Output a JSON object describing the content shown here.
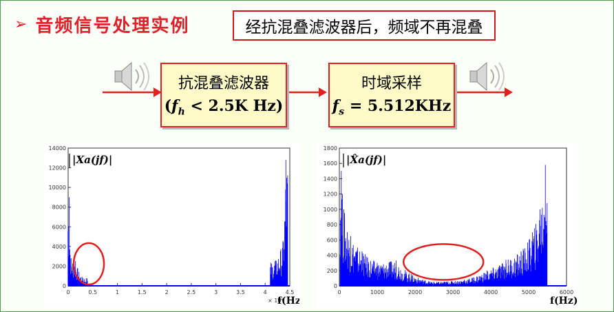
{
  "title": {
    "bullet": "➢",
    "text": "音频信号处理实例"
  },
  "note": "经抗混叠滤波器后，频域不再混叠",
  "flow": {
    "box1": {
      "line1": "抗混叠滤波器",
      "line2_prefix": "(",
      "line2_var": "f",
      "line2_sub": "h",
      "line2_suffix": " < 2.5K Hz)"
    },
    "box2": {
      "line1": "时域采样",
      "line2_var": "f",
      "line2_sub": "s",
      "line2_suffix": " = 5.512KHz"
    },
    "icons": [
      "speaker-icon",
      "speaker-icon"
    ],
    "colors": {
      "arrow": "#e02020",
      "box_fill": "#fffbc8",
      "box_border": "#e02020"
    }
  },
  "chart_data": [
    {
      "type": "line",
      "formula": "|Xa(jf)|",
      "xlabel": "f(Hz)",
      "x_multiplier": "× 10⁴",
      "xticks": [
        "0",
        "0.5",
        "1",
        "1.5",
        "2",
        "2.5",
        "3",
        "3.5",
        "4",
        "4.5"
      ],
      "yticks": [
        "0",
        "2000",
        "4000",
        "6000",
        "8000",
        "10000",
        "12000",
        "14000"
      ],
      "xlim": [
        0,
        4.5
      ],
      "ylim": [
        0,
        14000
      ],
      "series_color": "#0000ff",
      "annotation": {
        "type": "ellipse",
        "color": "#e02020",
        "x_center": 0.42,
        "y_center": 700
      },
      "peaks": [
        {
          "x": 0.02,
          "y": 9000
        },
        {
          "x": 0.06,
          "y": 2800
        },
        {
          "x": 0.15,
          "y": 2500
        },
        {
          "x": 0.3,
          "y": 800
        },
        {
          "x": 4.2,
          "y": 2500
        },
        {
          "x": 4.36,
          "y": 4500
        },
        {
          "x": 4.42,
          "y": 12800
        }
      ]
    },
    {
      "type": "line",
      "formula": "|X̂a(jf)|",
      "xlabel": "f(Hz)",
      "xticks": [
        "0",
        "1000",
        "2000",
        "3000",
        "4000",
        "5000",
        "6000"
      ],
      "yticks": [
        "0",
        "200",
        "400",
        "600",
        "800",
        "1000",
        "1200",
        "1400",
        "1600",
        "1800"
      ],
      "xlim": [
        0,
        6000
      ],
      "ylim": [
        0,
        1800
      ],
      "series_color": "#0000ff",
      "annotation": {
        "type": "ellipse",
        "color": "#e02020",
        "x_center": 2750,
        "y_center": 150
      },
      "peaks": [
        {
          "x": 50,
          "y": 1500
        },
        {
          "x": 120,
          "y": 1000
        },
        {
          "x": 300,
          "y": 650
        },
        {
          "x": 600,
          "y": 450
        },
        {
          "x": 1000,
          "y": 300
        },
        {
          "x": 1500,
          "y": 330
        },
        {
          "x": 1900,
          "y": 150
        },
        {
          "x": 2500,
          "y": 50
        },
        {
          "x": 3300,
          "y": 80
        },
        {
          "x": 3900,
          "y": 200
        },
        {
          "x": 4400,
          "y": 340
        },
        {
          "x": 4800,
          "y": 450
        },
        {
          "x": 5100,
          "y": 700
        },
        {
          "x": 5300,
          "y": 1000
        },
        {
          "x": 5440,
          "y": 1580
        }
      ]
    }
  ]
}
